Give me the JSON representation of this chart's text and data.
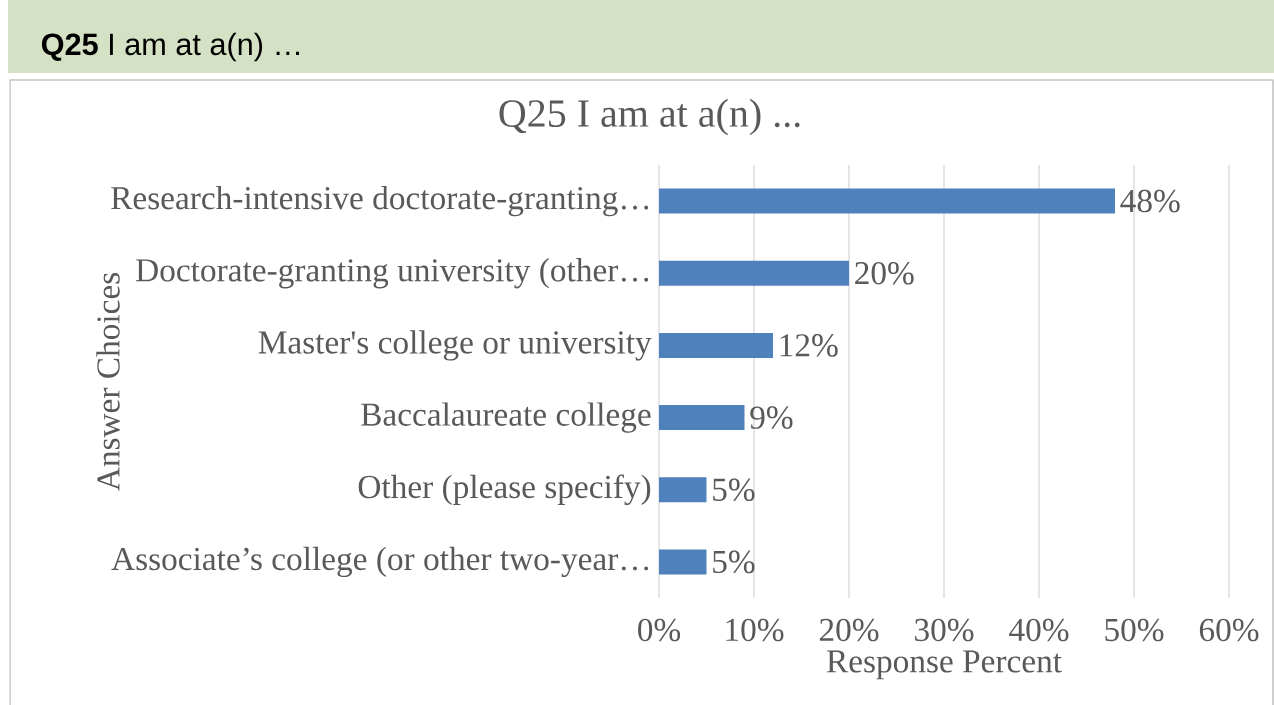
{
  "chart_data": {
    "type": "bar",
    "orientation": "horizontal",
    "title": "Q25 I am at a(n) ...",
    "xlabel": "Response Percent",
    "ylabel": "Answer Choices",
    "annotations": [
      "**Q25** I am at a(n) …"
    ],
    "categories": [
      "Research-intensive doctorate-granting…",
      "Doctorate-granting university (other…",
      "Master's college or university",
      "Baccalaureate college",
      "Other (please specify)",
      "Associate’s college (or other two-year…"
    ],
    "values": [
      48,
      20,
      12,
      9,
      5,
      5
    ],
    "value_labels": [
      "48%",
      "20%",
      "12%",
      "9%",
      "5%",
      "5%"
    ],
    "color": "#4f81bd",
    "xlim": [
      0,
      60
    ],
    "xticks": [
      {
        "value": 0,
        "label": "0%"
      },
      {
        "value": 10,
        "label": "10%"
      },
      {
        "value": 20,
        "label": "20%"
      },
      {
        "value": 30,
        "label": "30%"
      },
      {
        "value": 40,
        "label": "40%"
      },
      {
        "value": 50,
        "label": "50%"
      },
      {
        "value": 60,
        "label": "60%"
      }
    ],
    "grid": "x"
  }
}
